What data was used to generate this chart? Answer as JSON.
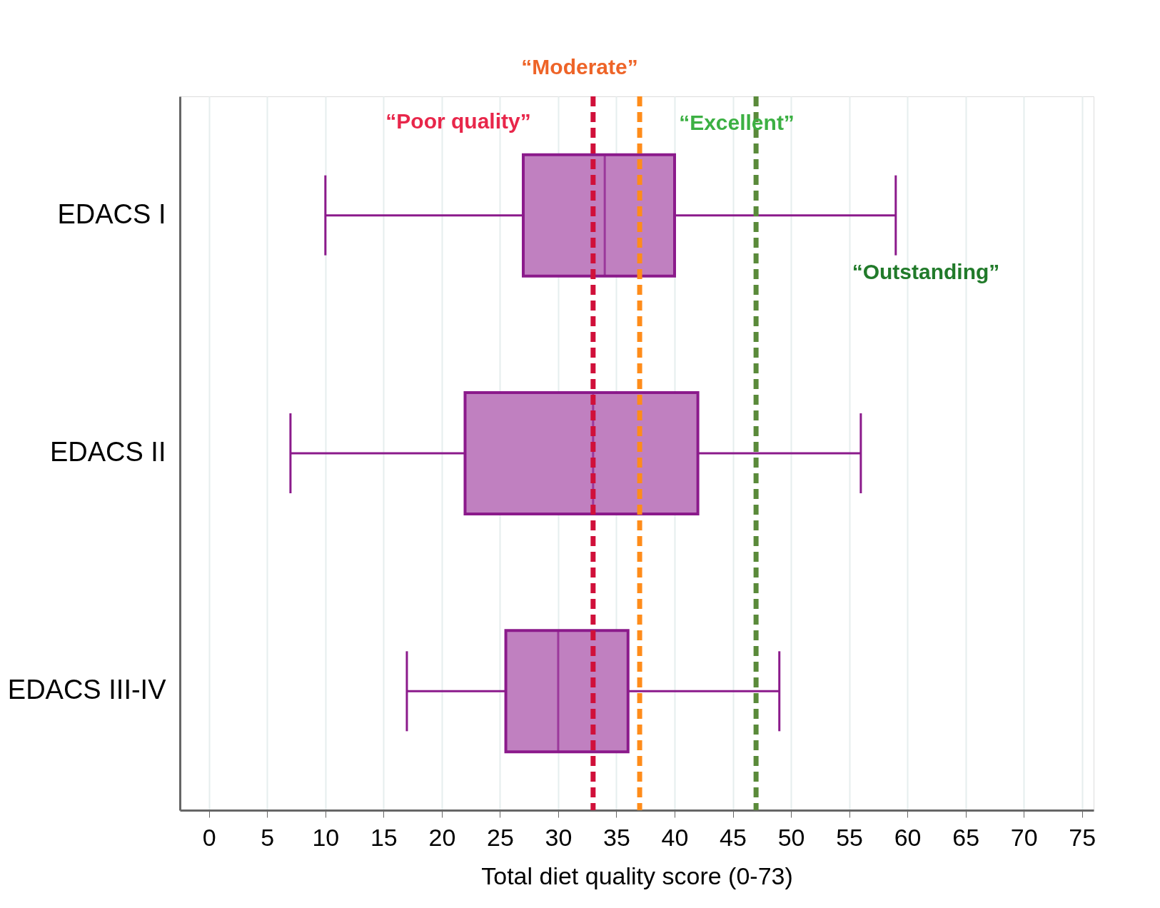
{
  "chart_data": {
    "type": "box",
    "orientation": "horizontal",
    "xlabel": "Total diet quality score (0-73)",
    "categories": [
      "EDACS I",
      "EDACS II",
      "EDACS III-IV"
    ],
    "boxes": [
      {
        "low": 10,
        "q1": 27,
        "median": 34,
        "q3": 40,
        "high": 59
      },
      {
        "low": 7,
        "q1": 22,
        "median": 33,
        "q3": 42,
        "high": 56
      },
      {
        "low": 17,
        "q1": 25.5,
        "median": 30,
        "q3": 36,
        "high": 49
      }
    ],
    "color": "#c080c0",
    "xlim": [
      -2.5,
      76
    ],
    "xticks": [
      0,
      5,
      10,
      15,
      20,
      25,
      30,
      35,
      40,
      45,
      50,
      55,
      60,
      65,
      70,
      75
    ],
    "grid": "x",
    "ref_lines": [
      {
        "axis": "x",
        "value": 33,
        "color": "#d0103a",
        "line_style": "dashed"
      },
      {
        "axis": "x",
        "value": 37,
        "color": "#ff8c1a",
        "line_style": "dashed"
      },
      {
        "axis": "x",
        "value": 47,
        "color": "#5a8a3a",
        "line_style": "dashed"
      }
    ],
    "annotations": [
      "“Poor quality”",
      "“Moderate”",
      "“Excellent”",
      "“Outstanding”"
    ]
  }
}
